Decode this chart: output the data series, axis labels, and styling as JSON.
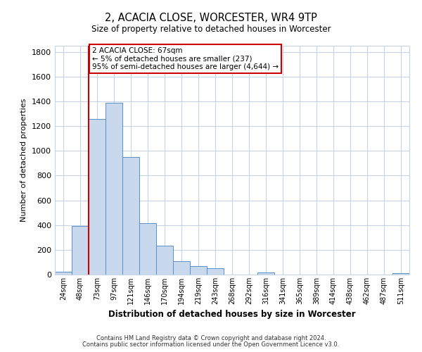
{
  "title": "2, ACACIA CLOSE, WORCESTER, WR4 9TP",
  "subtitle": "Size of property relative to detached houses in Worcester",
  "xlabel": "Distribution of detached houses by size in Worcester",
  "ylabel": "Number of detached properties",
  "bar_labels": [
    "24sqm",
    "48sqm",
    "73sqm",
    "97sqm",
    "121sqm",
    "146sqm",
    "170sqm",
    "194sqm",
    "219sqm",
    "243sqm",
    "268sqm",
    "292sqm",
    "316sqm",
    "341sqm",
    "365sqm",
    "389sqm",
    "414sqm",
    "438sqm",
    "462sqm",
    "487sqm",
    "511sqm"
  ],
  "bar_values": [
    25,
    390,
    1260,
    1390,
    950,
    415,
    235,
    110,
    68,
    50,
    0,
    0,
    15,
    0,
    0,
    0,
    0,
    0,
    0,
    0,
    12
  ],
  "bar_color": "#c9d9ed",
  "bar_edgecolor": "#5b8fc9",
  "ylim": [
    0,
    1850
  ],
  "yticks": [
    0,
    200,
    400,
    600,
    800,
    1000,
    1200,
    1400,
    1600,
    1800
  ],
  "vline_index": 1.5,
  "vline_color": "#cc0000",
  "annotation_text": "2 ACACIA CLOSE: 67sqm\n← 5% of detached houses are smaller (237)\n95% of semi-detached houses are larger (4,644) →",
  "annotation_box_color": "#ffffff",
  "annotation_box_edgecolor": "#cc0000",
  "footer_line1": "Contains HM Land Registry data © Crown copyright and database right 2024.",
  "footer_line2": "Contains public sector information licensed under the Open Government Licence v3.0.",
  "background_color": "#ffffff",
  "grid_color": "#c8d4e3"
}
